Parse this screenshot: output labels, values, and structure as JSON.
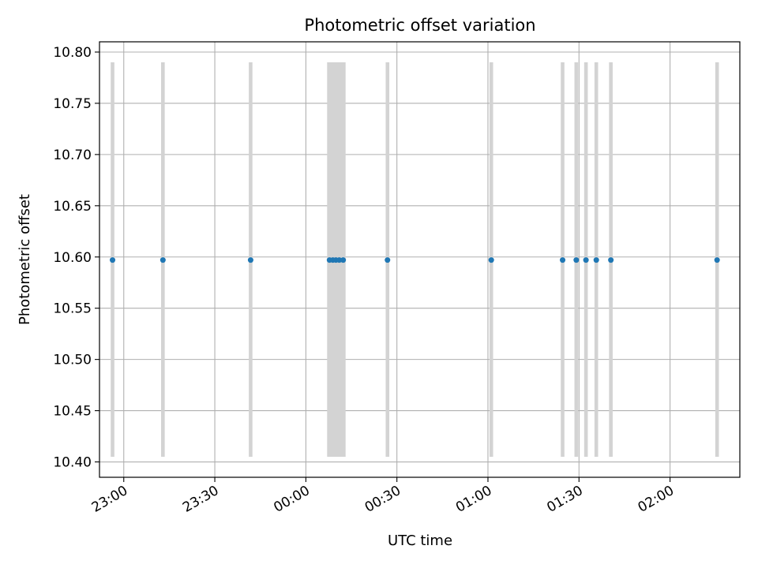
{
  "chart_data": {
    "type": "scatter",
    "title": "Photometric offset variation",
    "xlabel": "UTC time",
    "ylabel": "Photometric offset",
    "xlim": [
      "22:52",
      "02:23"
    ],
    "ylim": [
      10.385,
      10.81
    ],
    "grid": true,
    "x_ticks": [
      "23:00",
      "23:30",
      "00:00",
      "00:30",
      "01:00",
      "01:30",
      "02:00"
    ],
    "y_ticks": [
      10.4,
      10.45,
      10.5,
      10.55,
      10.6,
      10.65,
      10.7,
      10.75,
      10.8
    ],
    "band_range": [
      10.405,
      10.79
    ],
    "bands": [
      {
        "start": "22:55.7",
        "end": "22:56.9"
      },
      {
        "start": "23:12.3",
        "end": "23:13.5"
      },
      {
        "start": "23:41.2",
        "end": "23:42.4"
      },
      {
        "start": "00:07.0",
        "end": "00:13.1"
      },
      {
        "start": "00:26.3",
        "end": "00:27.5"
      },
      {
        "start": "01:00.5",
        "end": "01:01.7"
      },
      {
        "start": "01:24.0",
        "end": "01:25.2"
      },
      {
        "start": "01:28.5",
        "end": "01:29.7"
      },
      {
        "start": "01:31.7",
        "end": "01:32.9"
      },
      {
        "start": "01:35.1",
        "end": "01:36.3"
      },
      {
        "start": "01:39.9",
        "end": "01:41.1"
      },
      {
        "start": "02:14.9",
        "end": "02:16.1"
      }
    ],
    "band_color": "#d3d3d3",
    "series": [
      {
        "color": "#1f77b4",
        "points": [
          {
            "x": "22:56.3",
            "y": 10.597
          },
          {
            "x": "23:12.9",
            "y": 10.597
          },
          {
            "x": "23:41.8",
            "y": 10.597
          },
          {
            "x": "00:07.8",
            "y": 10.597
          },
          {
            "x": "00:08.9",
            "y": 10.597
          },
          {
            "x": "00:09.9",
            "y": 10.597
          },
          {
            "x": "00:11.0",
            "y": 10.597
          },
          {
            "x": "00:12.3",
            "y": 10.597
          },
          {
            "x": "00:26.9",
            "y": 10.597
          },
          {
            "x": "01:01.1",
            "y": 10.597
          },
          {
            "x": "01:24.6",
            "y": 10.597
          },
          {
            "x": "01:29.1",
            "y": 10.597
          },
          {
            "x": "01:32.3",
            "y": 10.597
          },
          {
            "x": "01:35.7",
            "y": 10.597
          },
          {
            "x": "01:40.5",
            "y": 10.597
          },
          {
            "x": "02:15.5",
            "y": 10.597
          }
        ]
      }
    ]
  }
}
